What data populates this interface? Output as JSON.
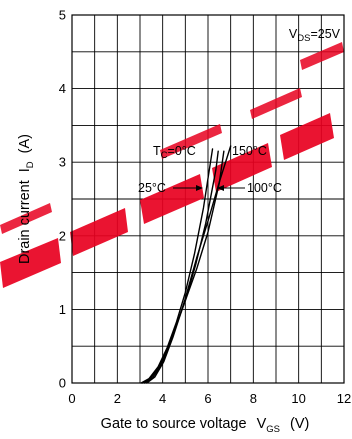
{
  "chart_data": {
    "type": "line",
    "xlabel": "Gate to source voltage",
    "xlabel_symbol": "V",
    "xlabel_symbol_sub": "GS",
    "xlabel_unit": "(V)",
    "ylabel": "Drain current",
    "ylabel_symbol": "I",
    "ylabel_symbol_sub": "D",
    "ylabel_unit": "(A)",
    "xlim": [
      0,
      12
    ],
    "ylim": [
      0,
      5
    ],
    "x_ticks": [
      "0",
      "2",
      "4",
      "6",
      "8",
      "10",
      "12"
    ],
    "y_ticks": [
      "0",
      "1",
      "2",
      "3",
      "4",
      "5"
    ],
    "grid": true,
    "condition": {
      "symbol": "V",
      "sub": "DS",
      "text": "=25V"
    },
    "watermark_color": "#e8001f",
    "series": [
      {
        "name": "T_C=0°C",
        "x": [
          3.05,
          3.4,
          3.8,
          4.2,
          4.6,
          5.0,
          5.4,
          5.8,
          6.2
        ],
        "y": [
          0.0,
          0.06,
          0.22,
          0.48,
          0.82,
          1.23,
          1.75,
          2.38,
          3.18
        ]
      },
      {
        "name": "25°C",
        "x": [
          3.1,
          3.45,
          3.85,
          4.25,
          4.65,
          5.0,
          5.45,
          5.9,
          6.35,
          6.45
        ],
        "y": [
          0.0,
          0.06,
          0.22,
          0.48,
          0.82,
          1.12,
          1.6,
          2.17,
          2.9,
          3.15
        ]
      },
      {
        "name": "100°C",
        "x": [
          3.2,
          3.55,
          3.95,
          4.35,
          4.7,
          5.0,
          5.5,
          6.0,
          6.5,
          6.7
        ],
        "y": [
          0.0,
          0.07,
          0.25,
          0.55,
          0.87,
          1.12,
          1.55,
          2.05,
          2.72,
          3.15
        ]
      },
      {
        "name": "150°C",
        "x": [
          3.3,
          3.65,
          4.05,
          4.45,
          4.8,
          5.0,
          5.3,
          5.5,
          6.0,
          6.5,
          7.0
        ],
        "y": [
          0.0,
          0.08,
          0.29,
          0.62,
          0.95,
          1.15,
          1.48,
          1.7,
          2.2,
          2.73,
          3.22
        ]
      }
    ],
    "annotations": [
      {
        "sym": "T",
        "sub": "C",
        "text": "=0°C",
        "for": "T_C=0°C"
      },
      {
        "text": "150°C",
        "for": "150°C"
      },
      {
        "text": "25°C",
        "for": "25°C"
      },
      {
        "text": "100°C",
        "for": "100°C"
      }
    ]
  }
}
